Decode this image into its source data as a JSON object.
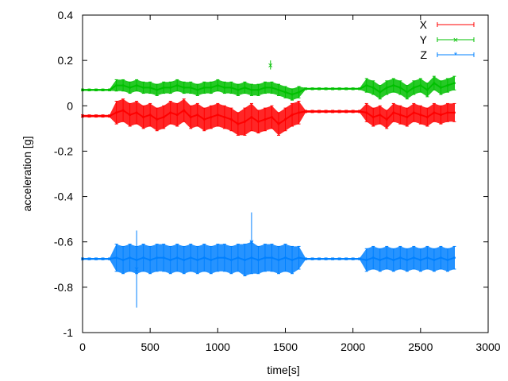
{
  "chart_data": {
    "type": "line",
    "title": "",
    "xlabel": "time[s]",
    "ylabel": "acceleration [g]",
    "xlim": [
      0,
      3000
    ],
    "ylim": [
      -1,
      0.4
    ],
    "xticks": [
      "0",
      "500",
      "1000",
      "1500",
      "2000",
      "2500",
      "3000"
    ],
    "yticks": [
      "-1",
      "-0.8",
      "-0.6",
      "-0.4",
      "-0.2",
      "0",
      "0.2",
      "0.4"
    ],
    "grid": false,
    "legend_position": "top-right",
    "error_bars": true,
    "x": [
      0,
      50,
      100,
      150,
      200,
      250,
      300,
      350,
      400,
      450,
      500,
      550,
      600,
      650,
      700,
      750,
      800,
      850,
      900,
      950,
      1000,
      1050,
      1100,
      1150,
      1200,
      1250,
      1300,
      1350,
      1400,
      1450,
      1500,
      1550,
      1600,
      1650,
      1700,
      1750,
      1800,
      1850,
      1900,
      1950,
      2000,
      2050,
      2100,
      2150,
      2200,
      2250,
      2300,
      2350,
      2400,
      2450,
      2500,
      2550,
      2600,
      2650,
      2700,
      2750
    ],
    "series": [
      {
        "name": "X",
        "color": "#ff0000",
        "y": [
          -0.045,
          -0.045,
          -0.045,
          -0.045,
          -0.045,
          -0.03,
          -0.02,
          -0.04,
          -0.03,
          -0.05,
          -0.04,
          -0.06,
          -0.05,
          -0.03,
          -0.04,
          -0.02,
          -0.05,
          -0.04,
          -0.06,
          -0.05,
          -0.04,
          -0.05,
          -0.06,
          -0.08,
          -0.07,
          -0.05,
          -0.07,
          -0.06,
          -0.05,
          -0.08,
          -0.06,
          -0.04,
          -0.03,
          -0.025,
          -0.025,
          -0.025,
          -0.025,
          -0.025,
          -0.025,
          -0.025,
          -0.025,
          -0.025,
          -0.03,
          -0.05,
          -0.04,
          -0.06,
          -0.03,
          -0.04,
          -0.05,
          -0.03,
          -0.04,
          -0.05,
          -0.03,
          -0.04,
          -0.03,
          -0.03
        ],
        "err": [
          0.005,
          0.005,
          0.005,
          0.005,
          0.005,
          0.05,
          0.05,
          0.05,
          0.05,
          0.05,
          0.05,
          0.05,
          0.05,
          0.05,
          0.05,
          0.05,
          0.05,
          0.05,
          0.05,
          0.05,
          0.05,
          0.05,
          0.05,
          0.05,
          0.06,
          0.06,
          0.05,
          0.05,
          0.05,
          0.05,
          0.05,
          0.05,
          0.05,
          0.005,
          0.005,
          0.005,
          0.005,
          0.005,
          0.005,
          0.005,
          0.005,
          0.005,
          0.04,
          0.04,
          0.04,
          0.04,
          0.04,
          0.04,
          0.04,
          0.04,
          0.04,
          0.04,
          0.04,
          0.04,
          0.04,
          0.04
        ],
        "outliers": []
      },
      {
        "name": "Y",
        "color": "#00c000",
        "y": [
          0.07,
          0.07,
          0.07,
          0.07,
          0.07,
          0.09,
          0.09,
          0.08,
          0.09,
          0.08,
          0.08,
          0.07,
          0.08,
          0.08,
          0.09,
          0.08,
          0.08,
          0.07,
          0.08,
          0.08,
          0.09,
          0.08,
          0.08,
          0.07,
          0.08,
          0.07,
          0.07,
          0.08,
          0.08,
          0.07,
          0.06,
          0.05,
          0.06,
          0.075,
          0.075,
          0.075,
          0.075,
          0.075,
          0.075,
          0.075,
          0.075,
          0.075,
          0.09,
          0.08,
          0.06,
          0.08,
          0.09,
          0.08,
          0.06,
          0.08,
          0.09,
          0.07,
          0.1,
          0.08,
          0.09,
          0.1
        ],
        "err": [
          0.004,
          0.004,
          0.004,
          0.004,
          0.004,
          0.025,
          0.025,
          0.025,
          0.025,
          0.025,
          0.025,
          0.025,
          0.025,
          0.025,
          0.025,
          0.025,
          0.025,
          0.025,
          0.025,
          0.025,
          0.025,
          0.025,
          0.025,
          0.025,
          0.025,
          0.025,
          0.025,
          0.025,
          0.025,
          0.025,
          0.025,
          0.025,
          0.025,
          0.004,
          0.004,
          0.004,
          0.004,
          0.004,
          0.004,
          0.004,
          0.004,
          0.004,
          0.03,
          0.03,
          0.03,
          0.03,
          0.03,
          0.03,
          0.03,
          0.03,
          0.03,
          0.03,
          0.03,
          0.03,
          0.03,
          0.03
        ],
        "outliers": [
          {
            "x": 1390,
            "y": 0.18,
            "err": 0.02
          }
        ]
      },
      {
        "name": "Z",
        "color": "#0080ff",
        "y": [
          -0.675,
          -0.675,
          -0.675,
          -0.675,
          -0.675,
          -0.67,
          -0.68,
          -0.67,
          -0.68,
          -0.67,
          -0.68,
          -0.67,
          -0.67,
          -0.68,
          -0.67,
          -0.68,
          -0.67,
          -0.68,
          -0.67,
          -0.68,
          -0.67,
          -0.67,
          -0.68,
          -0.67,
          -0.68,
          -0.67,
          -0.68,
          -0.67,
          -0.67,
          -0.68,
          -0.67,
          -0.68,
          -0.67,
          -0.675,
          -0.675,
          -0.675,
          -0.675,
          -0.675,
          -0.675,
          -0.675,
          -0.675,
          -0.675,
          -0.68,
          -0.67,
          -0.68,
          -0.67,
          -0.68,
          -0.67,
          -0.68,
          -0.67,
          -0.68,
          -0.67,
          -0.68,
          -0.67,
          -0.68,
          -0.67
        ],
        "err": [
          0.004,
          0.004,
          0.004,
          0.004,
          0.004,
          0.06,
          0.06,
          0.06,
          0.06,
          0.06,
          0.06,
          0.06,
          0.06,
          0.06,
          0.06,
          0.06,
          0.06,
          0.06,
          0.06,
          0.06,
          0.06,
          0.06,
          0.06,
          0.06,
          0.07,
          0.07,
          0.06,
          0.06,
          0.06,
          0.06,
          0.06,
          0.06,
          0.05,
          0.004,
          0.004,
          0.004,
          0.004,
          0.004,
          0.004,
          0.004,
          0.004,
          0.004,
          0.05,
          0.05,
          0.05,
          0.05,
          0.05,
          0.05,
          0.05,
          0.05,
          0.05,
          0.05,
          0.05,
          0.05,
          0.05,
          0.05
        ],
        "outliers": [
          {
            "x": 400,
            "y": -0.72,
            "err": 0.17
          },
          {
            "x": 1250,
            "y": -0.6,
            "err": 0.13
          }
        ]
      }
    ]
  }
}
